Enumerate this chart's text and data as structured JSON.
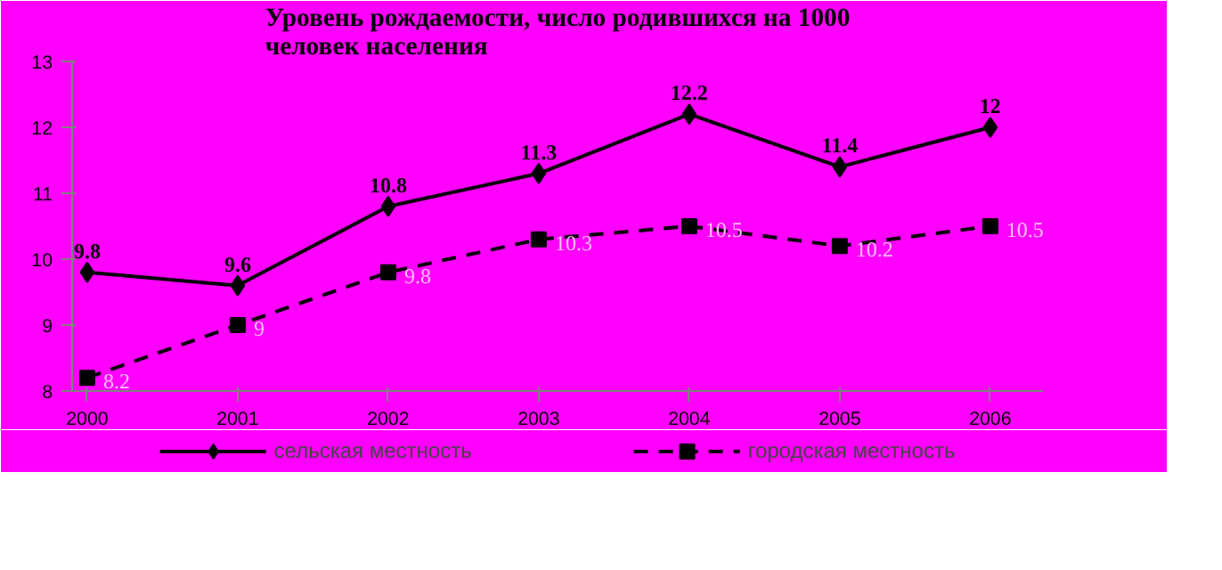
{
  "chart_data": {
    "type": "line",
    "title": "Уровень рождаемости, число родившихся на 1000\nчеловек населения",
    "categories": [
      "2000",
      "2001",
      "2002",
      "2003",
      "2004",
      "2005",
      "2006"
    ],
    "series": [
      {
        "name": "сельская местность",
        "color": "#000000",
        "marker": "diamond",
        "line_style": "solid",
        "values": [
          9.8,
          9.6,
          10.8,
          11.3,
          12.2,
          11.4,
          12
        ]
      },
      {
        "name": "городская местность",
        "color": "#000000",
        "marker": "square",
        "line_style": "dashed",
        "values": [
          8.2,
          9,
          9.8,
          10.3,
          10.5,
          10.2,
          10.5
        ]
      }
    ],
    "ylim": [
      8,
      13
    ],
    "yticks": [
      8,
      9,
      10,
      11,
      12,
      13
    ],
    "grid": false,
    "legend": "bottom",
    "data_labels": true
  }
}
